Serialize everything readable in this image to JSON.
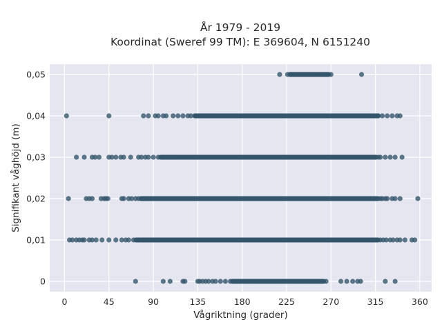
{
  "chart_data": {
    "type": "scatter",
    "title_line1": "År 1979 - 2019",
    "title_line2": "Koordinat (Sweref 99 TM): E 369604, N 6151240",
    "xlabel": "Vågriktning (grader)",
    "ylabel": "Signifikant våghöjd (m)",
    "xlim": [
      -15,
      372
    ],
    "ylim": [
      -0.0025,
      0.0525
    ],
    "xticks": [
      0,
      45,
      90,
      135,
      180,
      225,
      270,
      315,
      360
    ],
    "xtick_labels": [
      "0",
      "45",
      "90",
      "135",
      "180",
      "225",
      "270",
      "315",
      "360"
    ],
    "yticks": [
      0,
      0.01,
      0.02,
      0.03,
      0.04,
      0.05
    ],
    "ytick_labels": [
      "0",
      "0,01",
      "0,02",
      "0,03",
      "0,04",
      "0,05"
    ],
    "grid": true,
    "marker_color": "#34566b",
    "background_color": "#e5e6f0",
    "series": [
      {
        "y": 0,
        "x": [
          72,
          100,
          107,
          120,
          122,
          135,
          137,
          140,
          143,
          146,
          150,
          153,
          158,
          163,
          168,
          170,
          172,
          176,
          181,
          185,
          189,
          193,
          197,
          201,
          205,
          209,
          213,
          217,
          221,
          225,
          229,
          233,
          237,
          241,
          245,
          249,
          253,
          257,
          261,
          265,
          280,
          286,
          292,
          297,
          300,
          325,
          335
        ],
        "dense_range": [
          168,
          265
        ]
      },
      {
        "y": 0.01,
        "x": [
          5,
          8,
          12,
          15,
          18,
          20,
          25,
          28,
          32,
          38,
          45,
          52,
          58,
          62,
          65,
          70,
          75,
          80,
          84,
          88,
          92,
          95,
          320,
          323,
          326,
          330,
          333,
          337,
          340,
          345,
          352,
          355
        ],
        "dense_range": [
          70,
          320
        ]
      },
      {
        "y": 0.02,
        "x": [
          4,
          22,
          25,
          28,
          37,
          40,
          42,
          44,
          58,
          60,
          65,
          68,
          72,
          75,
          78,
          82,
          85,
          88,
          310,
          315,
          320,
          322,
          325,
          327,
          332,
          335,
          340,
          358
        ],
        "dense_range": [
          75,
          320
        ]
      },
      {
        "y": 0.03,
        "x": [
          12,
          20,
          28,
          31,
          35,
          45,
          48,
          52,
          57,
          60,
          67,
          75,
          78,
          82,
          85,
          90,
          95,
          100,
          106,
          110,
          315,
          318,
          320,
          325,
          330,
          335,
          342
        ],
        "dense_range": [
          95,
          318
        ]
      },
      {
        "y": 0.04,
        "x": [
          2,
          45,
          80,
          85,
          92,
          95,
          100,
          103,
          110,
          115,
          120,
          125,
          128,
          132,
          135,
          138,
          142,
          145,
          150,
          318,
          322,
          327,
          332,
          337,
          340
        ],
        "dense_range": [
          130,
          320
        ]
      },
      {
        "y": 0.05,
        "x": [
          218,
          226,
          229,
          232,
          237,
          240,
          244,
          248,
          251,
          256,
          261,
          265,
          270,
          301
        ],
        "dense_range": [
          226,
          270
        ]
      }
    ]
  }
}
